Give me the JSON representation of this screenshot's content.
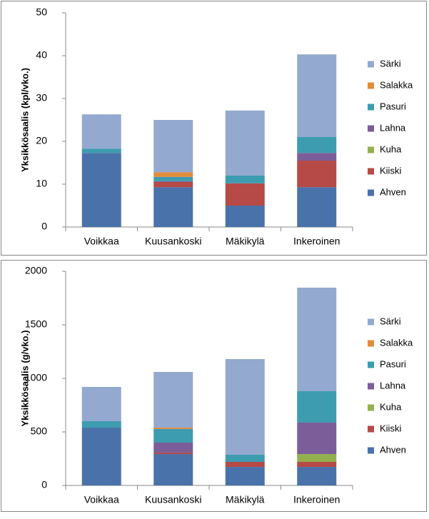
{
  "chart_data": [
    {
      "type": "bar",
      "stacked": true,
      "y_label": "Yksikkösaalis (kpl/vko.)",
      "categories": [
        "Voikkaa",
        "Kuusankoski",
        "Mäkikylä",
        "Inkeroinen"
      ],
      "series": [
        {
          "name": "Ahven",
          "color": "#4a72aa",
          "values": [
            17.3,
            9.3,
            5.0,
            9.3
          ]
        },
        {
          "name": "Kiiski",
          "color": "#b54a47",
          "values": [
            0,
            1.2,
            5.2,
            6.2
          ]
        },
        {
          "name": "Kuha",
          "color": "#93b04f",
          "values": [
            0,
            0,
            0,
            0
          ]
        },
        {
          "name": "Lahna",
          "color": "#7b5e99",
          "values": [
            0,
            0.2,
            0,
            1.8
          ]
        },
        {
          "name": "Pasuri",
          "color": "#3d9cb0",
          "values": [
            1.0,
            1.0,
            1.8,
            3.7
          ]
        },
        {
          "name": "Salakka",
          "color": "#e18c3c",
          "values": [
            0,
            1.1,
            0,
            0
          ]
        },
        {
          "name": "Särki",
          "color": "#93a9cf",
          "values": [
            8.0,
            12.2,
            15.2,
            19.3
          ]
        }
      ],
      "ylim": [
        0,
        50
      ],
      "yticks": [
        0,
        10,
        20,
        30,
        40,
        50
      ],
      "legend": "right"
    },
    {
      "type": "bar",
      "stacked": true,
      "y_label": "Yksikkösaalis (g/vko.)",
      "categories": [
        "Voikkaa",
        "Kuusankoski",
        "Mäkikylä",
        "Inkeroinen"
      ],
      "series": [
        {
          "name": "Ahven",
          "color": "#4a72aa",
          "values": [
            540,
            293,
            173,
            173
          ]
        },
        {
          "name": "Kiiski",
          "color": "#b54a47",
          "values": [
            0,
            14,
            47,
            47
          ]
        },
        {
          "name": "Kuha",
          "color": "#93b04f",
          "values": [
            0,
            0,
            0,
            73
          ]
        },
        {
          "name": "Lahna",
          "color": "#7b5e99",
          "values": [
            0,
            93,
            0,
            294
          ]
        },
        {
          "name": "Pasuri",
          "color": "#3d9cb0",
          "values": [
            60,
            127,
            67,
            293
          ]
        },
        {
          "name": "Salakka",
          "color": "#e18c3c",
          "values": [
            0,
            13,
            0,
            0
          ]
        },
        {
          "name": "Särki",
          "color": "#93a9cf",
          "values": [
            320,
            520,
            893,
            967
          ]
        }
      ],
      "ylim": [
        0,
        2000
      ],
      "yticks": [
        0,
        500,
        1000,
        1500,
        2000
      ],
      "legend": "right"
    }
  ]
}
